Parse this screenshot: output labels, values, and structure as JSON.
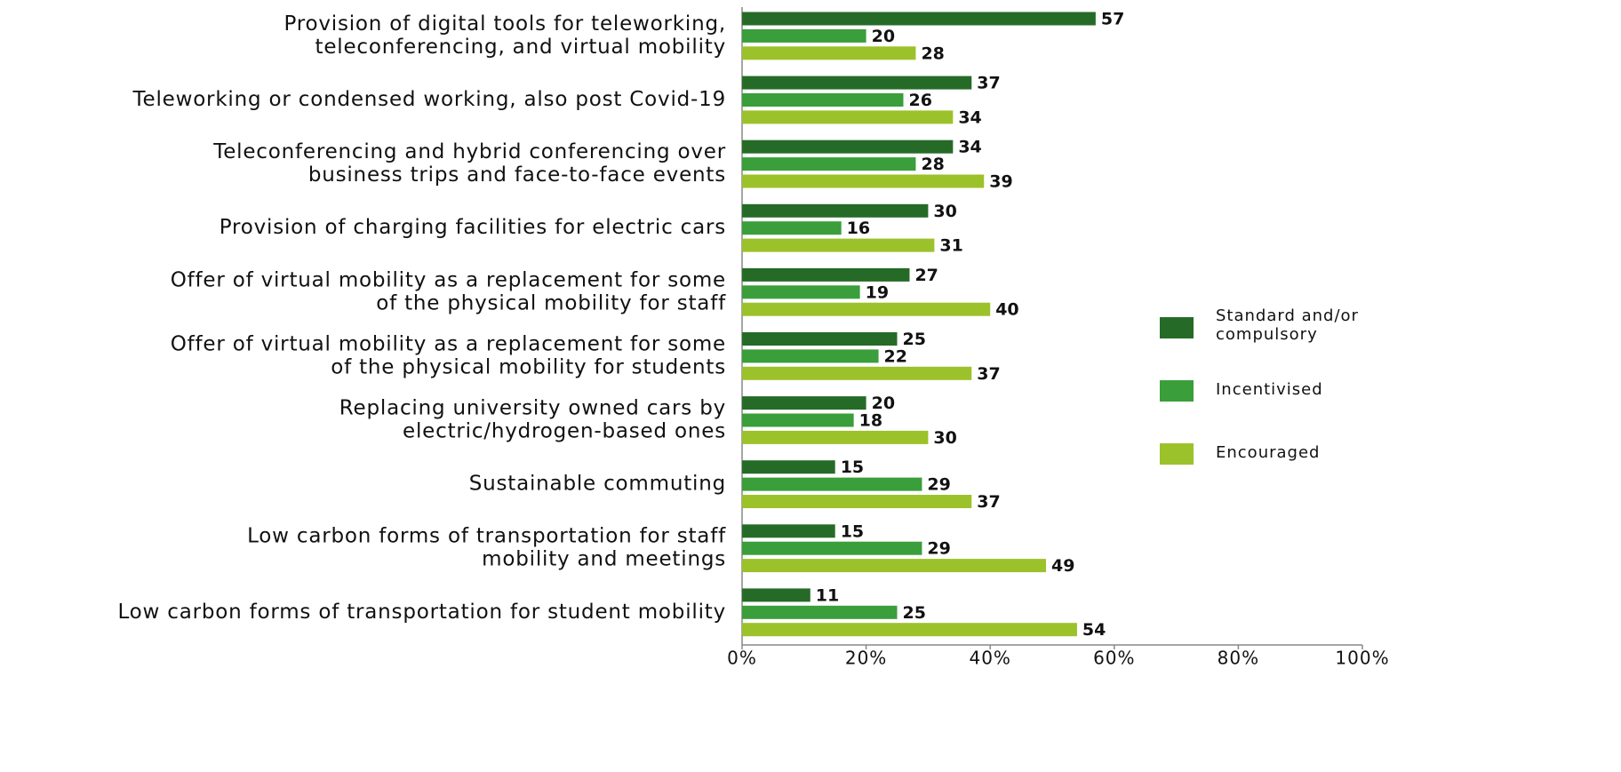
{
  "chart_data": {
    "type": "barh",
    "categories": [
      [
        "Provision of digital tools for teleworking,",
        "teleconferencing, and virtual mobility"
      ],
      [
        "Teleworking or condensed working, also post Covid-19"
      ],
      [
        "Teleconferencing and hybrid conferencing over",
        "business trips and face-to-face events"
      ],
      [
        "Provision of charging facilities for electric cars"
      ],
      [
        "Offer of virtual mobility as a replacement for some",
        "of the physical mobility for staff"
      ],
      [
        "Offer of virtual mobility as a replacement for some",
        "of the physical mobility for students"
      ],
      [
        "Replacing university owned cars by",
        "electric/hydrogen-based ones"
      ],
      [
        "Sustainable commuting"
      ],
      [
        "Low carbon forms of transportation for staff",
        "mobility and meetings"
      ],
      [
        "Low carbon forms of transportation for student mobility"
      ]
    ],
    "series": [
      {
        "name": "Standard and/or compulsory",
        "color": "#256b27",
        "values": [
          57,
          37,
          34,
          30,
          27,
          25,
          20,
          15,
          15,
          11
        ]
      },
      {
        "name": "Incentivised",
        "color": "#3a9e3a",
        "values": [
          20,
          26,
          28,
          16,
          19,
          22,
          18,
          29,
          29,
          25
        ]
      },
      {
        "name": "Encouraged",
        "color": "#9bc22a",
        "values": [
          28,
          34,
          39,
          31,
          40,
          37,
          30,
          37,
          49,
          54
        ]
      }
    ],
    "xlim": [
      0,
      100
    ],
    "xticks": [
      {
        "value": 0,
        "label": "0%"
      },
      {
        "value": 20,
        "label": "20%"
      },
      {
        "value": 40,
        "label": "40%"
      },
      {
        "value": 60,
        "label": "60%"
      },
      {
        "value": 80,
        "label": "80%"
      },
      {
        "value": 100,
        "label": "100%"
      }
    ],
    "legend": "right"
  }
}
